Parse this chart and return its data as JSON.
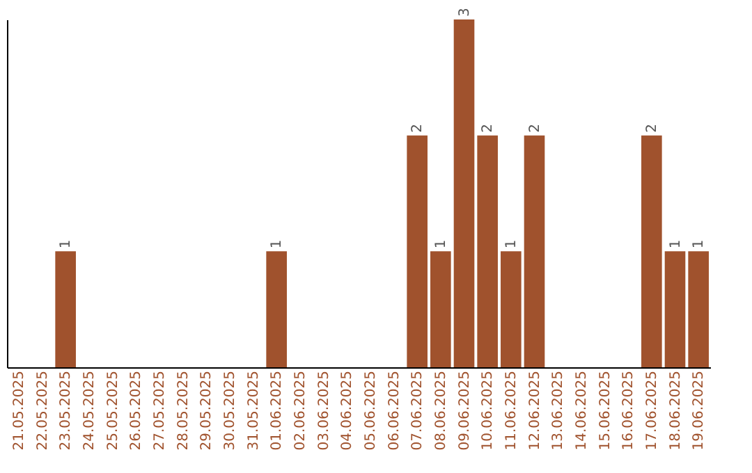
{
  "chart_data": {
    "type": "bar",
    "categories": [
      "21.05.2025",
      "22.05.2025",
      "23.05.2025",
      "24.05.2025",
      "25.05.2025",
      "26.05.2025",
      "27.05.2025",
      "28.05.2025",
      "29.05.2025",
      "30.05.2025",
      "31.05.2025",
      "01.06.2025",
      "02.06.2025",
      "03.06.2025",
      "04.06.2025",
      "05.06.2025",
      "06.06.2025",
      "07.06.2025",
      "08.06.2025",
      "09.06.2025",
      "10.06.2025",
      "11.06.2025",
      "12.06.2025",
      "13.06.2025",
      "14.06.2025",
      "15.06.2025",
      "16.06.2025",
      "17.06.2025",
      "18.06.2025",
      "19.06.2025"
    ],
    "values": [
      0,
      0,
      1,
      0,
      0,
      0,
      0,
      0,
      0,
      0,
      0,
      1,
      0,
      0,
      0,
      0,
      0,
      2,
      1,
      3,
      2,
      1,
      2,
      0,
      0,
      0,
      0,
      2,
      1,
      1
    ],
    "value_labels": [
      null,
      null,
      "1",
      null,
      null,
      null,
      null,
      null,
      null,
      null,
      null,
      "1",
      null,
      null,
      null,
      null,
      null,
      "2",
      "1",
      "3",
      "2",
      "1",
      "2",
      null,
      null,
      null,
      null,
      "2",
      "1",
      "1"
    ],
    "color": "#a0522d",
    "ylim": [
      0,
      3
    ],
    "tick_labels": "x",
    "grid": false
  }
}
